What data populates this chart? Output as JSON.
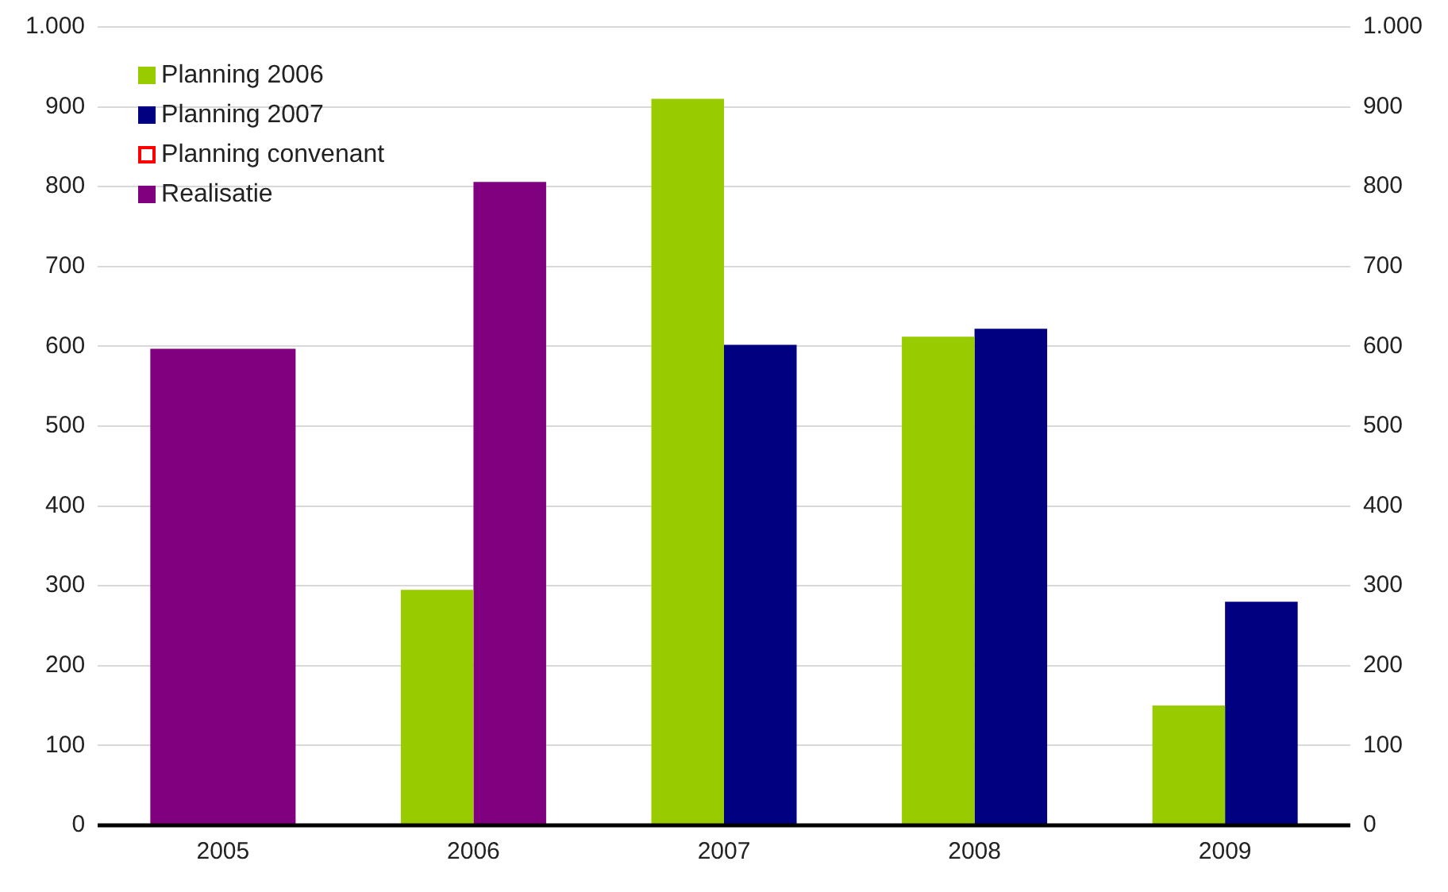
{
  "chart_data": {
    "type": "bar",
    "categories": [
      "2005",
      "2006",
      "2007",
      "2008",
      "2009"
    ],
    "series": [
      {
        "name": "Planning 2006",
        "color": "#99cc00",
        "values": [
          null,
          295,
          910,
          612,
          150
        ]
      },
      {
        "name": "Planning 2007",
        "color": "#000080",
        "values": [
          null,
          null,
          602,
          622,
          280
        ]
      },
      {
        "name": "Planning convenant",
        "color": "#ff0000",
        "values": [
          null,
          null,
          null,
          null,
          null
        ]
      },
      {
        "name": "Realisatie",
        "color": "#800080",
        "values": [
          597,
          806,
          null,
          null,
          null
        ]
      }
    ],
    "ylim": [
      0,
      1000
    ],
    "yticks": [
      0,
      100,
      200,
      300,
      400,
      500,
      600,
      700,
      800,
      900,
      {
        "value": 1000,
        "label": "1.000"
      }
    ],
    "y2lim": [
      0,
      1000
    ],
    "y2ticks": [
      0,
      100,
      200,
      300,
      400,
      500,
      600,
      700,
      800,
      900,
      {
        "value": 1000,
        "label": "1.000"
      }
    ],
    "grid": "y",
    "legend": "top left"
  }
}
